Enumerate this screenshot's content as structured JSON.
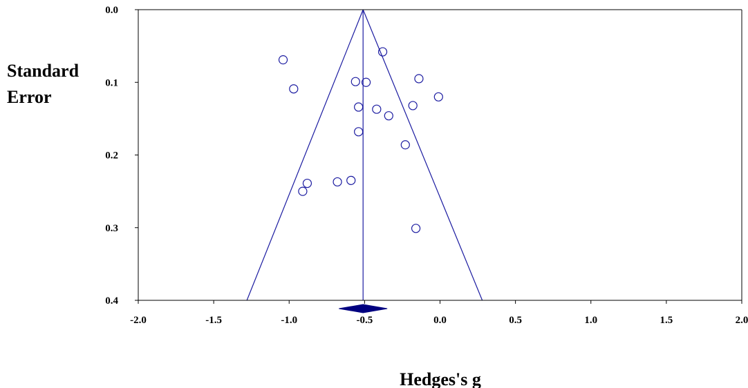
{
  "chart_data": {
    "type": "scatter",
    "subtype": "funnel-plot",
    "title": "",
    "xlabel": "Hedges's g",
    "ylabel_lines": [
      "Standard",
      "Error"
    ],
    "xlim": [
      -2.0,
      2.0
    ],
    "ylim": [
      0.0,
      0.4
    ],
    "y_reversed": true,
    "grid": false,
    "x_ticks": [
      -2.0,
      -1.5,
      -1.0,
      -0.5,
      0.0,
      0.5,
      1.0,
      1.5,
      2.0
    ],
    "x_tick_labels": [
      "-2.0",
      "-1.5",
      "-1.0",
      "-0.5",
      "0.0",
      "0.5",
      "1.0",
      "1.5",
      "2.0"
    ],
    "y_ticks": [
      0.0,
      0.1,
      0.2,
      0.3,
      0.4
    ],
    "y_tick_labels": [
      "0.0",
      "0.1",
      "0.2",
      "0.3",
      "0.4"
    ],
    "pooled_estimate": -0.51,
    "pooled_ci": [
      -0.67,
      -0.35
    ],
    "funnel_bottom": [
      -1.28,
      0.28
    ],
    "series": [
      {
        "points": [
          {
            "x": -1.04,
            "y": 0.069
          },
          {
            "x": -0.38,
            "y": 0.058
          },
          {
            "x": -0.97,
            "y": 0.109
          },
          {
            "x": -0.56,
            "y": 0.099
          },
          {
            "x": -0.49,
            "y": 0.1
          },
          {
            "x": -0.14,
            "y": 0.095
          },
          {
            "x": -0.01,
            "y": 0.12
          },
          {
            "x": -0.54,
            "y": 0.134
          },
          {
            "x": -0.42,
            "y": 0.137
          },
          {
            "x": -0.34,
            "y": 0.146
          },
          {
            "x": -0.18,
            "y": 0.132
          },
          {
            "x": -0.54,
            "y": 0.168
          },
          {
            "x": -0.23,
            "y": 0.186
          },
          {
            "x": -0.88,
            "y": 0.239
          },
          {
            "x": -0.91,
            "y": 0.25
          },
          {
            "x": -0.68,
            "y": 0.237
          },
          {
            "x": -0.59,
            "y": 0.235
          },
          {
            "x": -0.16,
            "y": 0.301
          }
        ]
      }
    ],
    "colors": {
      "funnel_line": "#1a1aa0",
      "marker": "#1a1aa0",
      "diamond": "#000080",
      "axis": "#000000"
    }
  }
}
